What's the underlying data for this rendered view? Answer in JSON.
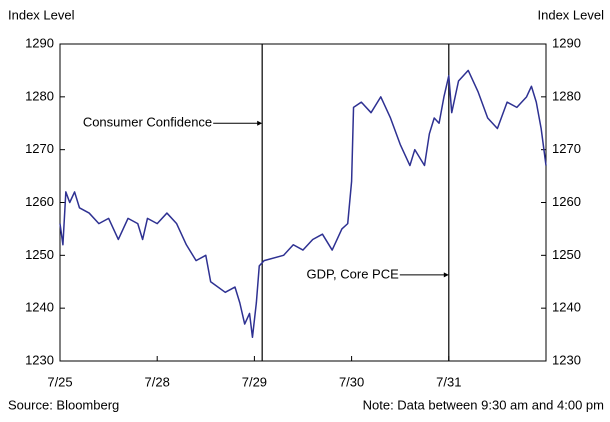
{
  "chart_data": {
    "type": "line",
    "y_label": "Index Level",
    "y2_label": "Index Level",
    "source": "Source: Bloomberg",
    "note": "Note: Data between 9:30 am and 4:00 pm",
    "annotations": [
      {
        "text": "Consumer Confidence",
        "x": 2.08,
        "y": 1275
      },
      {
        "text": "GDP, Core PCE",
        "x": 4.0,
        "y": 1246.3
      }
    ],
    "event_lines": [
      2.08,
      4.0
    ],
    "xlim": [
      0,
      5
    ],
    "xticks": [
      {
        "value": 0,
        "label": "7/25"
      },
      {
        "value": 1,
        "label": "7/28"
      },
      {
        "value": 2,
        "label": "7/29"
      },
      {
        "value": 3,
        "label": "7/30"
      },
      {
        "value": 4,
        "label": "7/31"
      }
    ],
    "ylim": [
      1230,
      1290
    ],
    "yticks": [
      1230,
      1240,
      1250,
      1260,
      1270,
      1280,
      1290
    ],
    "y2lim": [
      1230,
      1290
    ],
    "y2ticks": [
      1230,
      1240,
      1250,
      1260,
      1270,
      1280,
      1290
    ],
    "series": [
      {
        "color": "#2e3192",
        "x": [
          0,
          0.03,
          0.06,
          0.1,
          0.15,
          0.2,
          0.3,
          0.4,
          0.5,
          0.6,
          0.7,
          0.8,
          0.85,
          0.9,
          1.0,
          1.1,
          1.2,
          1.3,
          1.4,
          1.5,
          1.55,
          1.7,
          1.8,
          1.85,
          1.9,
          1.95,
          1.98,
          2.02,
          2.05,
          2.1,
          2.3,
          2.4,
          2.5,
          2.6,
          2.7,
          2.8,
          2.9,
          2.96,
          3.0,
          3.02,
          3.1,
          3.2,
          3.3,
          3.4,
          3.5,
          3.6,
          3.65,
          3.75,
          3.8,
          3.85,
          3.9,
          3.95,
          4.0,
          4.03,
          4.1,
          4.2,
          4.3,
          4.4,
          4.5,
          4.6,
          4.7,
          4.8,
          4.85,
          4.9,
          4.95,
          5.0
        ],
        "values": [
          1256,
          1252,
          1262,
          1260,
          1262,
          1259,
          1258,
          1256,
          1257,
          1253,
          1257,
          1256,
          1253,
          1257,
          1256,
          1258,
          1256,
          1252,
          1249,
          1250,
          1245,
          1243,
          1244,
          1241,
          1237,
          1239,
          1234.5,
          1241,
          1248,
          1249,
          1250,
          1252,
          1251,
          1253,
          1254,
          1251,
          1255,
          1256,
          1264,
          1278,
          1279,
          1277,
          1280,
          1276,
          1271,
          1267,
          1270,
          1267,
          1273,
          1276,
          1275,
          1280,
          1284,
          1277,
          1283,
          1285,
          1281,
          1276,
          1274,
          1279,
          1278,
          1280,
          1282,
          1279,
          1274,
          1267
        ]
      }
    ]
  }
}
